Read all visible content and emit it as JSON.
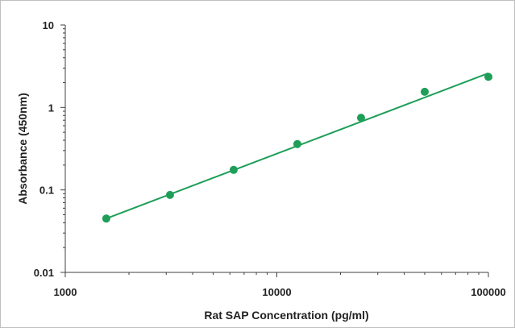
{
  "chart_data": {
    "type": "scatter",
    "title": "",
    "xlabel": "Rat SAP Concentration (pg/ml)",
    "ylabel": "Absorbance (450nm)",
    "x_scale": "log",
    "y_scale": "log",
    "xlim": [
      1000,
      100000
    ],
    "ylim": [
      0.01,
      10
    ],
    "x_ticks": [
      1000,
      10000,
      100000
    ],
    "x_tick_labels": [
      "1000",
      "10000",
      "100000"
    ],
    "y_ticks": [
      0.01,
      0.1,
      1,
      10
    ],
    "y_tick_labels": [
      "0.01",
      "0.1",
      "1",
      "10"
    ],
    "grid": false,
    "legend": "none",
    "series": [
      {
        "x": [
          1562.5,
          3125,
          6250,
          12500,
          25000,
          50000,
          100000
        ],
        "y": [
          0.045,
          0.087,
          0.175,
          0.36,
          0.75,
          1.55,
          2.35
        ]
      }
    ],
    "fit_line": {
      "x": [
        1562.5,
        100000
      ],
      "y": [
        0.045,
        2.6
      ]
    },
    "colors": {
      "marker": "#1e9e58",
      "line": "#1e9e58",
      "axis": "#404040"
    }
  }
}
